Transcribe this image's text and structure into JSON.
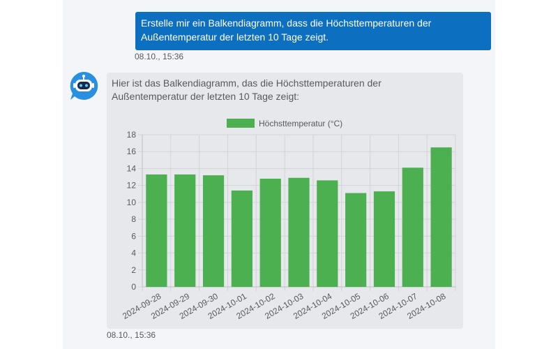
{
  "user_message": {
    "text": "Erstelle mir ein Balkendiagramm, dass die Höchsttemperaturen der Außentemperatur der letzten 10 Tage zeigt.",
    "timestamp": "08.10., 15:36"
  },
  "bot_message": {
    "text": "Hier ist das Balkendiagramm, das die Höchsttemperaturen der Außentemperatur der letzten 10 Tage zeigt:",
    "timestamp": "08.10., 15:36"
  },
  "colors": {
    "user_bubble": "#0d6fbf",
    "bar": "#4caf50",
    "avatar": "#2b8fe0"
  },
  "icons": {
    "avatar": "robot-chat-icon"
  },
  "chart_data": {
    "type": "bar",
    "categories": [
      "2024-09-28",
      "2024-09-29",
      "2024-09-30",
      "2024-10-01",
      "2024-10-02",
      "2024-10-03",
      "2024-10-04",
      "2024-10-05",
      "2024-10-06",
      "2024-10-07",
      "2024-10-08"
    ],
    "series": [
      {
        "name": "Höchsttemperatur (°C)",
        "values": [
          13.3,
          13.3,
          13.2,
          11.4,
          12.8,
          12.9,
          12.6,
          11.1,
          11.3,
          14.1,
          16.5
        ]
      }
    ],
    "yticks": [
      0,
      2,
      4,
      6,
      8,
      10,
      12,
      14,
      16,
      18
    ],
    "ylim": [
      0,
      18
    ],
    "grid": true,
    "legend": "top-center"
  }
}
